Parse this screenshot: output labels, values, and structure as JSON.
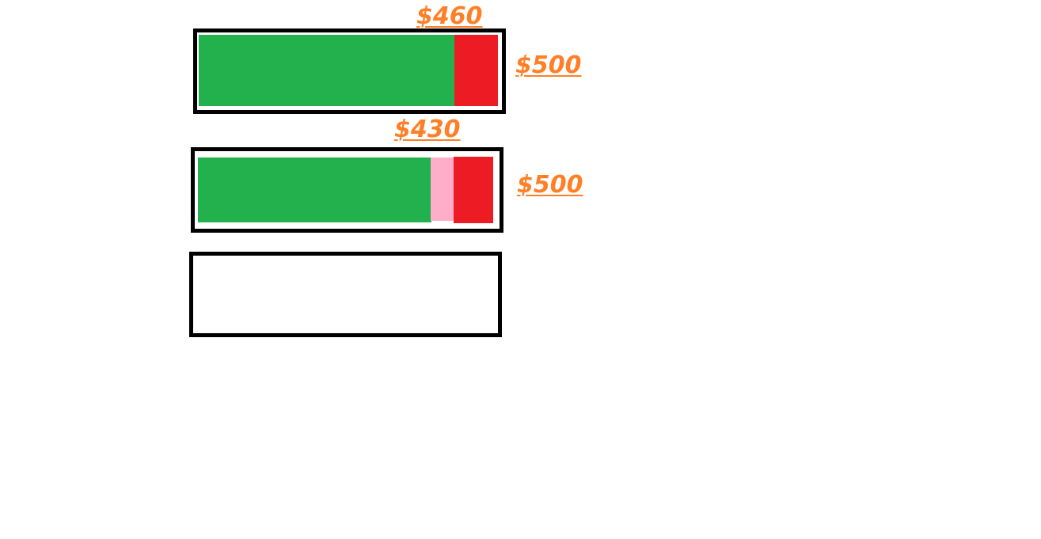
{
  "colors": {
    "border": "#000000",
    "green": "#22b14c",
    "red": "#ed1c24",
    "pink": "#ffaec9",
    "label": "#ff7f27"
  },
  "bars": [
    {
      "marker_label": "$460",
      "total_label": "$500",
      "segments": [
        {
          "color": "green",
          "value": 460
        },
        {
          "color": "red",
          "value": 40
        }
      ]
    },
    {
      "marker_label": "$430",
      "total_label": "$500",
      "segments": [
        {
          "color": "green",
          "value": 430
        },
        {
          "color": "pink",
          "value": 30
        },
        {
          "color": "red",
          "value": 40
        }
      ]
    },
    {
      "segments": []
    }
  ]
}
